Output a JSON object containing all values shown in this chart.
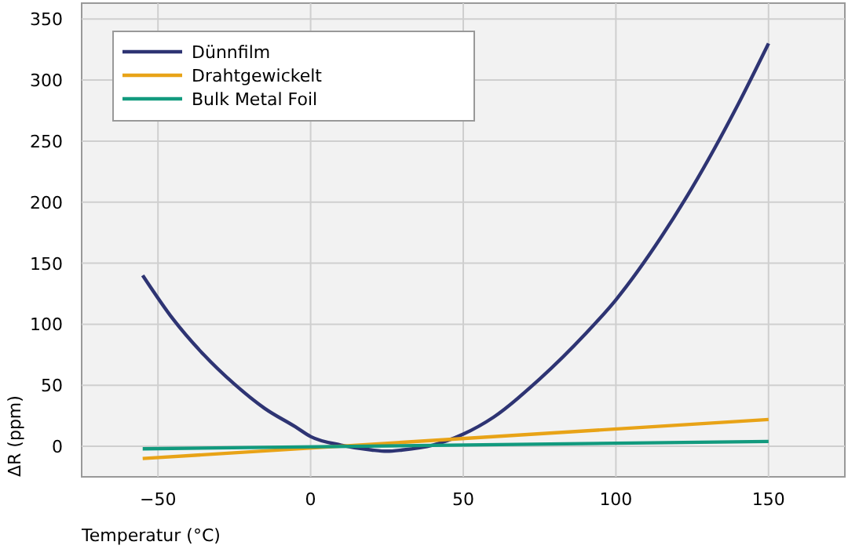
{
  "chart_data": {
    "type": "line",
    "xlabel": "Temperatur (°C)",
    "ylabel": "ΔR (ppm)",
    "xlim": [
      -75,
      175
    ],
    "ylim": [
      -25,
      363
    ],
    "xticks": [
      -50,
      0,
      50,
      100,
      150
    ],
    "yticks": [
      0,
      50,
      100,
      150,
      200,
      250,
      300,
      350
    ],
    "grid": true,
    "legend": "top left",
    "line_style": "solid",
    "marker": "none",
    "series": [
      {
        "name": "Dünnfilm",
        "color": "#2e3473",
        "x": [
          -55,
          -45,
          -35,
          -25,
          -15,
          -5,
          0,
          10,
          20,
          25,
          30,
          40,
          50,
          60,
          75,
          90,
          100,
          115,
          125,
          140,
          150
        ],
        "values": [
          140,
          104,
          75,
          51,
          31,
          16,
          8,
          1,
          -3,
          -4,
          -3,
          1,
          10,
          24,
          55,
          92,
          120,
          172,
          212,
          280,
          330
        ]
      },
      {
        "name": "Drahtgewickelt",
        "color": "#e8a317",
        "x": [
          -55,
          150
        ],
        "values": [
          -10,
          22
        ]
      },
      {
        "name": "Bulk Metal Foil",
        "color": "#129a7e",
        "x": [
          -55,
          150
        ],
        "values": [
          -2,
          4
        ]
      }
    ]
  }
}
